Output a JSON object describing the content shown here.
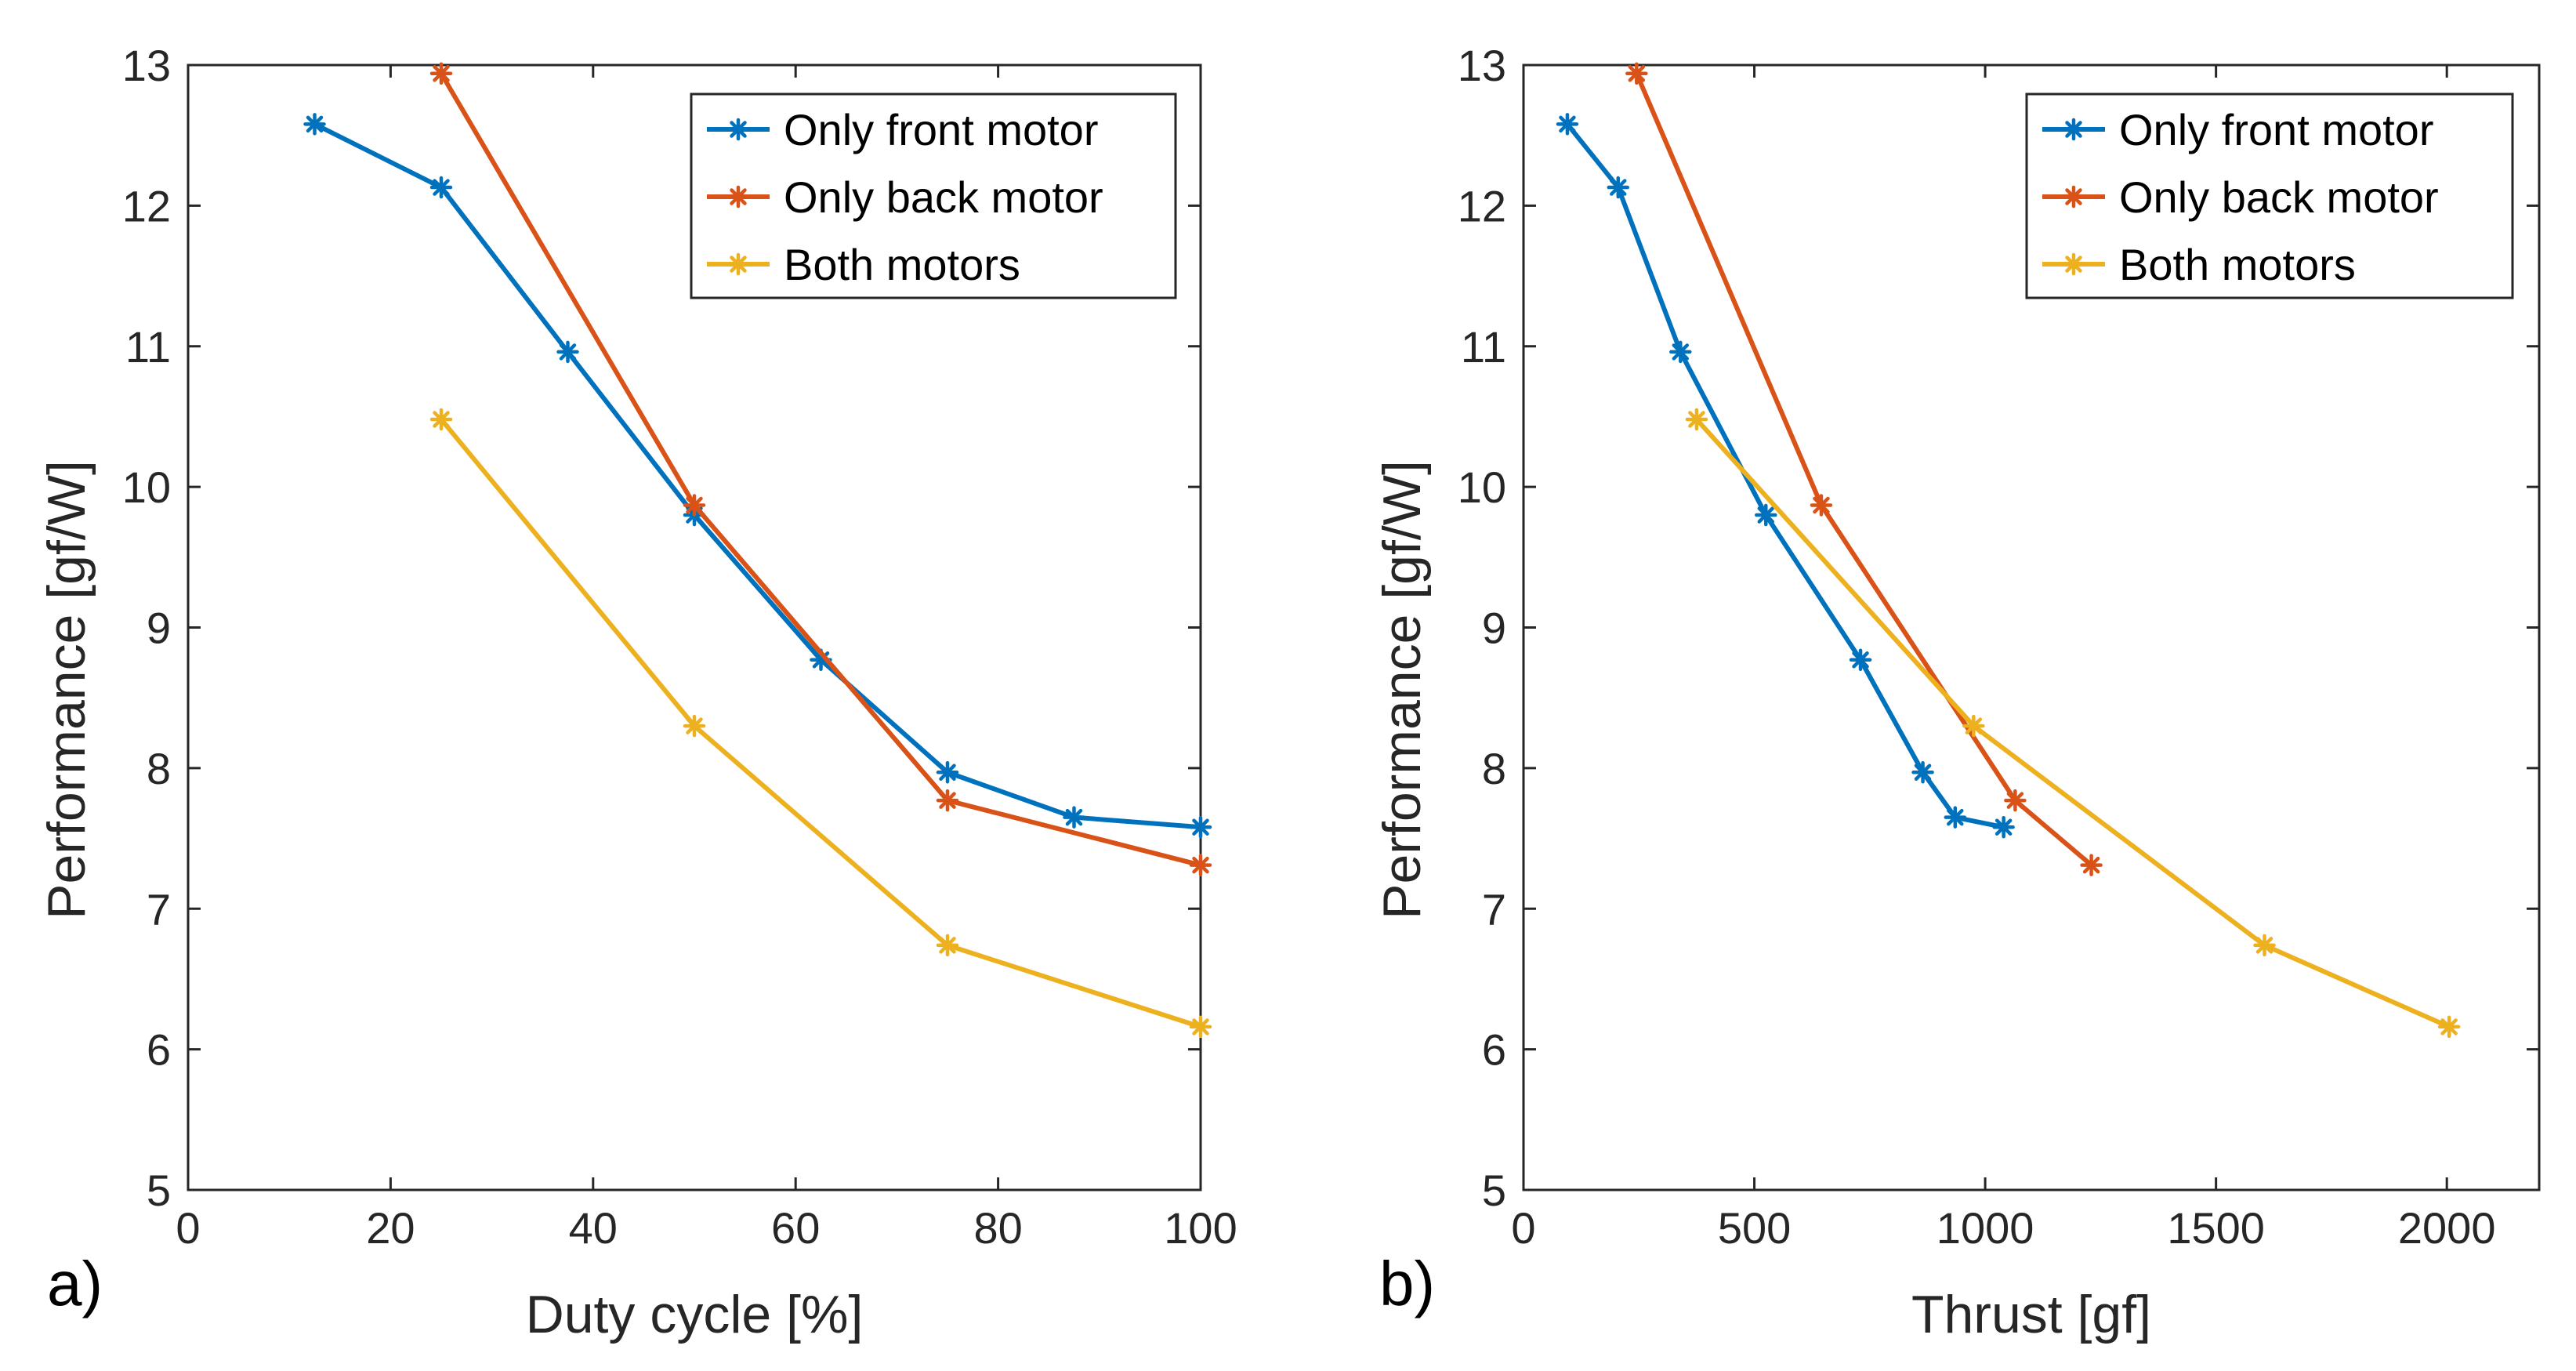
{
  "chart_data": [
    {
      "type": "line",
      "panel_label": "a)",
      "xlabel": "Duty cycle [%]",
      "ylabel": "Performance [gf/W]",
      "xlim": [
        0,
        100
      ],
      "ylim": [
        5,
        13
      ],
      "xticks": [
        0,
        20,
        40,
        60,
        80,
        100
      ],
      "yticks": [
        5,
        6,
        7,
        8,
        9,
        10,
        11,
        12,
        13
      ],
      "legend_position": "top-right",
      "series": [
        {
          "name": "Only front motor",
          "color": "#0072BD",
          "x": [
            12.5,
            25,
            37.5,
            50,
            62.5,
            75,
            87.5,
            100
          ],
          "y": [
            12.58,
            12.13,
            10.96,
            9.8,
            8.77,
            7.97,
            7.65,
            7.58
          ]
        },
        {
          "name": "Only back motor",
          "color": "#D95319",
          "x": [
            25,
            50,
            75,
            100
          ],
          "y": [
            12.94,
            9.87,
            7.77,
            7.31
          ]
        },
        {
          "name": "Both motors",
          "color": "#EDB120",
          "x": [
            25,
            50,
            75,
            100
          ],
          "y": [
            10.48,
            8.3,
            6.74,
            6.16
          ]
        }
      ]
    },
    {
      "type": "line",
      "panel_label": "b)",
      "xlabel": "Thrust [gf]",
      "ylabel": "Performance [gf/W]",
      "xlim": [
        0,
        2200
      ],
      "ylim": [
        5,
        13
      ],
      "xticks": [
        0,
        500,
        1000,
        1500,
        2000
      ],
      "yticks": [
        5,
        6,
        7,
        8,
        9,
        10,
        11,
        12,
        13
      ],
      "legend_position": "top-right",
      "series": [
        {
          "name": "Only front motor",
          "color": "#0072BD",
          "x": [
            95,
            205,
            340,
            525,
            730,
            865,
            935,
            1040
          ],
          "y": [
            12.58,
            12.13,
            10.96,
            9.8,
            8.77,
            7.97,
            7.65,
            7.58
          ]
        },
        {
          "name": "Only back motor",
          "color": "#D95319",
          "x": [
            245,
            645,
            1065,
            1230
          ],
          "y": [
            12.94,
            9.87,
            7.77,
            7.31
          ]
        },
        {
          "name": "Both motors",
          "color": "#EDB120",
          "x": [
            375,
            975,
            1605,
            2005
          ],
          "y": [
            10.48,
            8.3,
            6.74,
            6.16
          ]
        }
      ]
    }
  ]
}
